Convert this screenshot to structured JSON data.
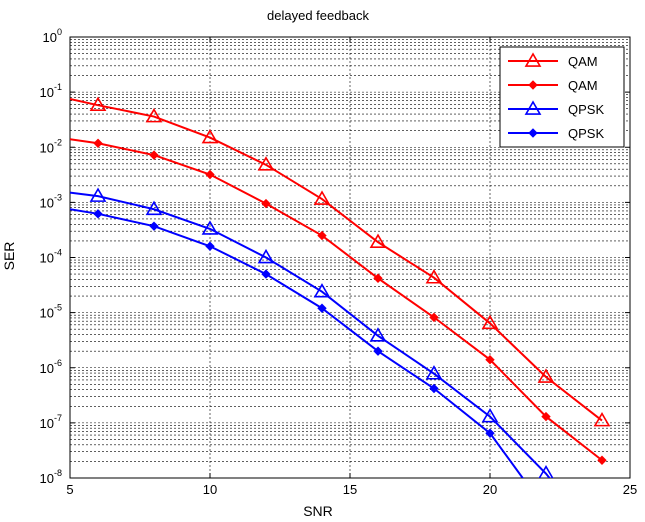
{
  "chart_data": {
    "type": "line",
    "title": "delayed feedback",
    "xlabel": "SNR",
    "ylabel": "SER",
    "x_scale": "linear",
    "y_scale": "log",
    "xlim": [
      5,
      25
    ],
    "ylim": [
      1e-08,
      1
    ],
    "grid": true,
    "legend_position": "top-right",
    "x_ticks": [
      "5",
      "10",
      "15",
      "20",
      "25"
    ],
    "y_ticks": [
      {
        "base": "10",
        "exp": "0"
      },
      {
        "base": "10",
        "exp": "-1"
      },
      {
        "base": "10",
        "exp": "-2"
      },
      {
        "base": "10",
        "exp": "-3"
      },
      {
        "base": "10",
        "exp": "-4"
      },
      {
        "base": "10",
        "exp": "-5"
      },
      {
        "base": "10",
        "exp": "-6"
      },
      {
        "base": "10",
        "exp": "-7"
      },
      {
        "base": "10",
        "exp": "-8"
      }
    ],
    "series": [
      {
        "name": "QAM",
        "color": "#ff0000",
        "marker": "triangle",
        "x": [
          5,
          6,
          8,
          10,
          12,
          14,
          16,
          18,
          20,
          22,
          24
        ],
        "y": [
          0.075,
          0.058,
          0.036,
          0.015,
          0.0048,
          0.00115,
          0.00019,
          4.3e-05,
          6.4e-06,
          6.8e-07,
          1.1e-07
        ]
      },
      {
        "name": "QAM",
        "color": "#ff0000",
        "marker": "diamond",
        "x": [
          5,
          6,
          8,
          10,
          12,
          14,
          16,
          18,
          20,
          22,
          24
        ],
        "y": [
          0.014,
          0.0118,
          0.0072,
          0.0032,
          0.00095,
          0.00025,
          4.2e-05,
          8.2e-06,
          1.4e-06,
          1.3e-07,
          2.1e-08
        ]
      },
      {
        "name": "QPSK",
        "color": "#0000ff",
        "marker": "triangle",
        "x": [
          5,
          6,
          8,
          10,
          12,
          14,
          16,
          18,
          20,
          22,
          22.6
        ],
        "y": [
          0.0015,
          0.0013,
          0.00075,
          0.00033,
          0.0001,
          2.4e-05,
          3.8e-06,
          7.8e-07,
          1.3e-07,
          1.2e-08,
          5e-09
        ]
      },
      {
        "name": "QPSK",
        "color": "#0000ff",
        "marker": "diamond",
        "x": [
          5,
          6,
          8,
          10,
          12,
          14,
          16,
          18,
          20,
          21.6
        ],
        "y": [
          0.00075,
          0.00062,
          0.00037,
          0.00016,
          5e-05,
          1.2e-05,
          2e-06,
          4.2e-07,
          6.5e-08,
          5e-09
        ]
      }
    ]
  }
}
